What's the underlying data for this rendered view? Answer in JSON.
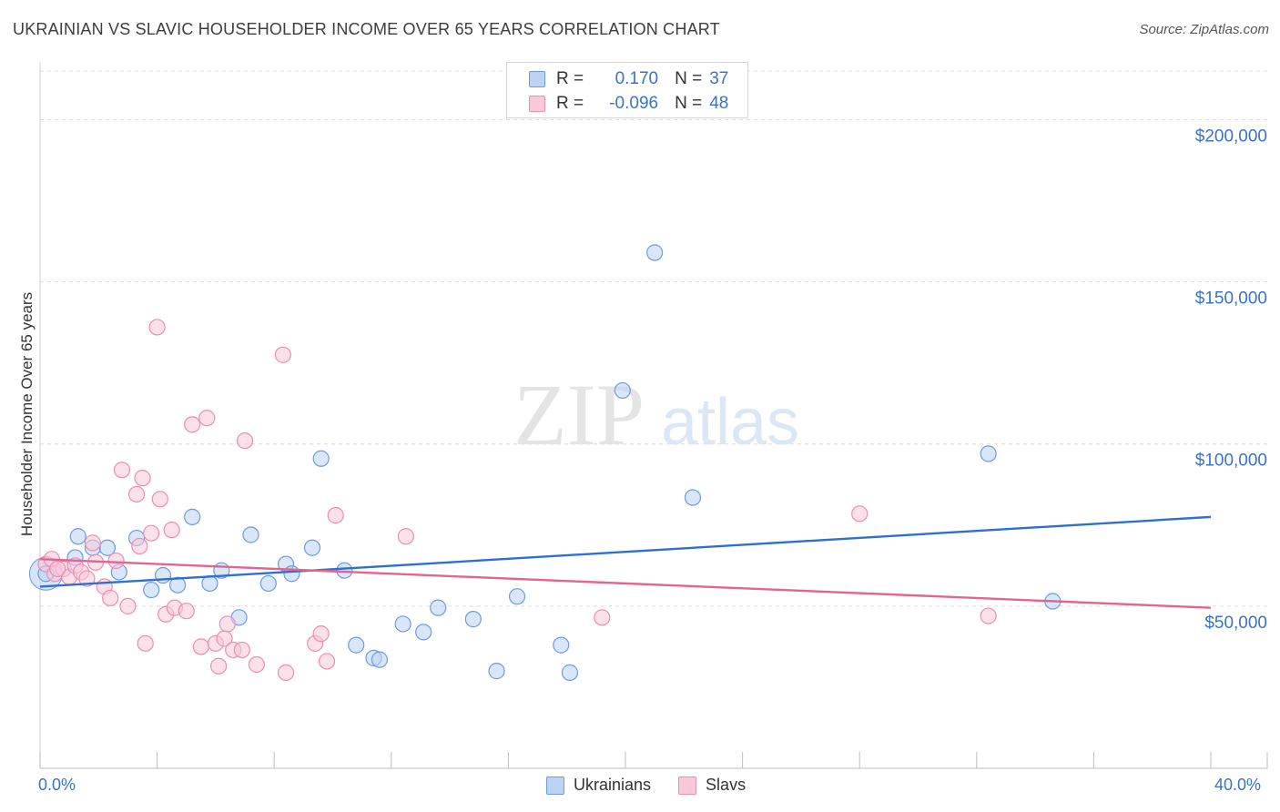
{
  "title": "UKRAINIAN VS SLAVIC HOUSEHOLDER INCOME OVER 65 YEARS CORRELATION CHART",
  "source": "Source: ZipAtlas.com",
  "watermark": {
    "zip": "ZIP",
    "atlas": "atlas"
  },
  "legend": {
    "rows": [
      {
        "r_label": "R =",
        "r_value": "0.170",
        "n_label": "N =",
        "n_value": "37"
      },
      {
        "r_label": "R =",
        "r_value": "-0.096",
        "n_label": "N =",
        "n_value": "48"
      }
    ]
  },
  "colors": {
    "blue_fill": "#bcd3f5",
    "blue_stroke": "#6e9ae0",
    "blue_line": "#2e6fcf",
    "pink_fill": "#f9c9d8",
    "pink_stroke": "#ec8db0",
    "pink_line": "#e2648f",
    "tick_label": "#3a72c8",
    "grid": "#dcdcdc"
  },
  "chart_data": {
    "type": "scatter",
    "title": "UKRAINIAN VS SLAVIC HOUSEHOLDER INCOME OVER 65 YEARS CORRELATION CHART",
    "xlabel": "",
    "ylabel": "Householder Income Over 65 years",
    "xlim": [
      0,
      40
    ],
    "ylim": [
      0,
      215000
    ],
    "x_tick_labels": [
      "0.0%",
      "40.0%"
    ],
    "y_ticks": [
      {
        "value": 50000,
        "label": "$50,000"
      },
      {
        "value": 100000,
        "label": "$100,000"
      },
      {
        "value": 150000,
        "label": "$150,000"
      },
      {
        "value": 200000,
        "label": "$200,000"
      }
    ],
    "grid": true,
    "legend_position": "bottom-center",
    "series": [
      {
        "name": "Ukrainians",
        "color": "#6e9ae0",
        "r": 0.17,
        "n": 37,
        "points": [
          [
            0.2,
            60000
          ],
          [
            1.2,
            65000
          ],
          [
            1.3,
            71500
          ],
          [
            1.8,
            68000
          ],
          [
            2.3,
            68000
          ],
          [
            2.7,
            60500
          ],
          [
            3.3,
            71000
          ],
          [
            3.8,
            55000
          ],
          [
            4.2,
            59500
          ],
          [
            4.7,
            56500
          ],
          [
            5.2,
            77500
          ],
          [
            5.8,
            57000
          ],
          [
            6.2,
            61000
          ],
          [
            6.8,
            46500
          ],
          [
            7.2,
            72000
          ],
          [
            7.8,
            57000
          ],
          [
            8.4,
            63000
          ],
          [
            8.6,
            60000
          ],
          [
            9.3,
            68000
          ],
          [
            9.6,
            95500
          ],
          [
            10.4,
            61000
          ],
          [
            10.8,
            38000
          ],
          [
            11.4,
            34000
          ],
          [
            11.6,
            33500
          ],
          [
            12.4,
            44500
          ],
          [
            13.1,
            42000
          ],
          [
            13.6,
            49500
          ],
          [
            14.8,
            46000
          ],
          [
            15.6,
            30000
          ],
          [
            16.3,
            53000
          ],
          [
            17.8,
            38000
          ],
          [
            18.1,
            29500
          ],
          [
            19.9,
            116500
          ],
          [
            21.0,
            159000
          ],
          [
            22.3,
            83500
          ],
          [
            32.4,
            97000
          ],
          [
            34.6,
            51500
          ]
        ]
      },
      {
        "name": "Slavs",
        "color": "#ec8db0",
        "r": -0.096,
        "n": 48,
        "points": [
          [
            0.2,
            63000
          ],
          [
            0.4,
            64500
          ],
          [
            0.5,
            60000
          ],
          [
            0.8,
            61500
          ],
          [
            1.0,
            59000
          ],
          [
            1.2,
            62500
          ],
          [
            1.4,
            60500
          ],
          [
            1.6,
            58500
          ],
          [
            1.8,
            69500
          ],
          [
            1.9,
            63500
          ],
          [
            2.2,
            56000
          ],
          [
            2.4,
            52500
          ],
          [
            2.6,
            64000
          ],
          [
            2.8,
            92000
          ],
          [
            3.0,
            50000
          ],
          [
            3.3,
            84500
          ],
          [
            3.4,
            68500
          ],
          [
            3.5,
            89500
          ],
          [
            3.6,
            38500
          ],
          [
            3.8,
            72500
          ],
          [
            4.0,
            136000
          ],
          [
            4.1,
            83000
          ],
          [
            4.3,
            47500
          ],
          [
            4.5,
            73500
          ],
          [
            4.6,
            49500
          ],
          [
            5.0,
            48500
          ],
          [
            5.2,
            106000
          ],
          [
            5.5,
            37500
          ],
          [
            5.7,
            108000
          ],
          [
            6.0,
            38500
          ],
          [
            6.1,
            31500
          ],
          [
            6.3,
            40000
          ],
          [
            6.4,
            44500
          ],
          [
            6.6,
            36500
          ],
          [
            6.9,
            36500
          ],
          [
            7.0,
            101000
          ],
          [
            7.4,
            32000
          ],
          [
            8.3,
            127500
          ],
          [
            8.4,
            29500
          ],
          [
            9.4,
            38500
          ],
          [
            9.6,
            41500
          ],
          [
            9.8,
            33000
          ],
          [
            10.1,
            78000
          ],
          [
            12.5,
            71500
          ],
          [
            19.2,
            46500
          ],
          [
            28.0,
            78500
          ],
          [
            32.4,
            47000
          ],
          [
            0.6,
            61500
          ]
        ]
      }
    ],
    "trend_lines": [
      {
        "series": "Ukrainians",
        "x": [
          0,
          40
        ],
        "y": [
          56000,
          77500
        ]
      },
      {
        "series": "Slavs",
        "x": [
          0,
          40
        ],
        "y": [
          64500,
          49500
        ]
      }
    ]
  }
}
